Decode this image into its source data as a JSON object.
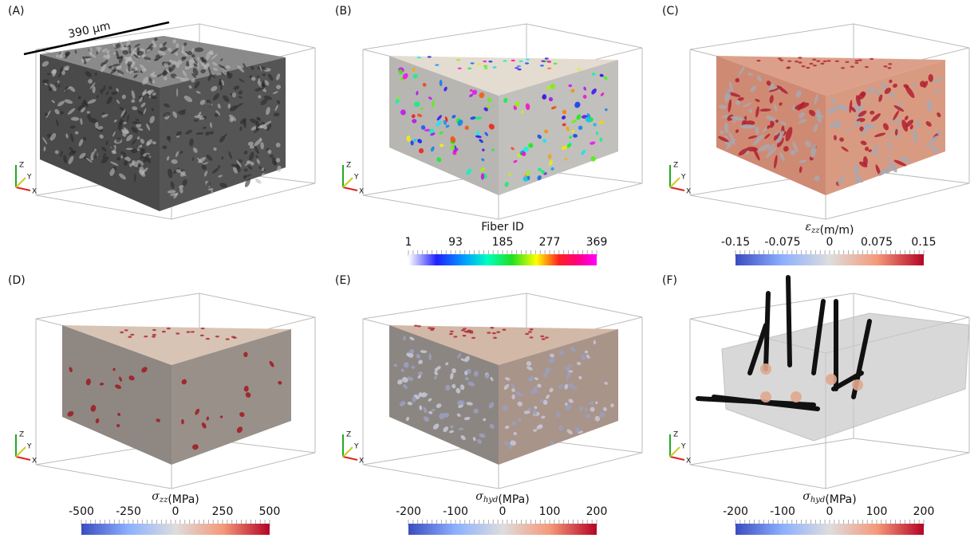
{
  "panels": [
    {
      "label": "(A)",
      "scale_label": "390 µm",
      "axes": {
        "z": "Z",
        "y": "Y",
        "x": "X"
      }
    },
    {
      "label": "(B)",
      "axes": {
        "z": "Z",
        "y": "Y",
        "x": "X"
      },
      "colorbar": {
        "title": "Fiber ID",
        "ticks": [
          1,
          93,
          185,
          277,
          369
        ]
      }
    },
    {
      "label": "(C)",
      "axes": {
        "z": "Z",
        "y": "Y",
        "x": "X"
      },
      "colorbar": {
        "symbol": "ε",
        "subscript": "zz",
        "unit": "(m/m)",
        "ticks": [
          -0.15,
          -0.075,
          0,
          0.075,
          0.15
        ]
      }
    },
    {
      "label": "(D)",
      "axes": {
        "z": "Z",
        "y": "Y",
        "x": "X"
      },
      "colorbar": {
        "symbol": "σ",
        "subscript": "zz",
        "unit": "(MPa)",
        "ticks": [
          -500,
          -250,
          0,
          250,
          500
        ]
      }
    },
    {
      "label": "(E)",
      "axes": {
        "z": "Z",
        "y": "Y",
        "x": "X"
      },
      "colorbar": {
        "symbol": "σ",
        "subscript": "hyd",
        "unit": "(MPa)",
        "ticks": [
          -200,
          -100,
          0,
          100,
          200
        ]
      }
    },
    {
      "label": "(F)",
      "axes": {
        "z": "Z",
        "y": "Y",
        "x": "X"
      },
      "colorbar": {
        "symbol": "σ",
        "subscript": "hyd",
        "unit": "(MPa)",
        "ticks": [
          -200,
          -100,
          0,
          100,
          200
        ]
      }
    }
  ]
}
